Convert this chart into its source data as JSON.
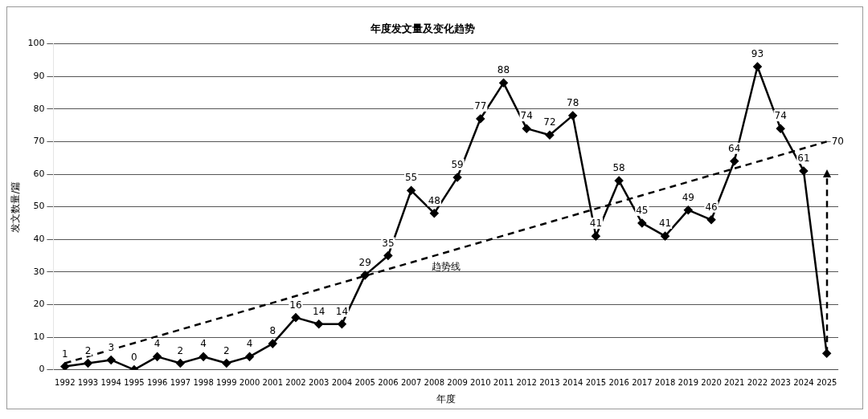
{
  "chart_data": {
    "type": "line",
    "title": "年度发文量及变化趋势",
    "xlabel": "年度",
    "ylabel": "发文数量/篇",
    "categories": [
      "1992",
      "1993",
      "1994",
      "1995",
      "1996",
      "1997",
      "1998",
      "1999",
      "2000",
      "2001",
      "2002",
      "2003",
      "2004",
      "2005",
      "2006",
      "2007",
      "2008",
      "2009",
      "2010",
      "2011",
      "2012",
      "2013",
      "2014",
      "2015",
      "2016",
      "2017",
      "2018",
      "2019",
      "2020",
      "2021",
      "2022",
      "2023",
      "2024",
      "2025"
    ],
    "series": [
      {
        "color": "#000000",
        "marker": "diamond",
        "line_style": "solid",
        "values": [
          1,
          2,
          3,
          0,
          4,
          2,
          4,
          2,
          4,
          8,
          16,
          14,
          14,
          29,
          35,
          55,
          48,
          59,
          77,
          88,
          74,
          72,
          78,
          41,
          58,
          45,
          41,
          49,
          46,
          64,
          93,
          74,
          61,
          5
        ],
        "value_labels": [
          "1",
          "2",
          "3",
          "0",
          "4",
          "2",
          "4",
          "2",
          "4",
          "8",
          "16",
          "14",
          "14",
          "29",
          "35",
          "55",
          "48",
          "59",
          "77",
          "88",
          "74",
          "72",
          "78",
          "41",
          "58",
          "45",
          "41",
          "49",
          "46",
          "64",
          "93",
          "74",
          "61",
          null
        ]
      },
      {
        "type": "line",
        "color": "#000000",
        "marker": "none",
        "line_style": "dashed",
        "values": [
          2,
          null,
          null,
          null,
          null,
          null,
          null,
          null,
          null,
          null,
          null,
          null,
          null,
          null,
          null,
          null,
          null,
          null,
          null,
          null,
          null,
          null,
          null,
          null,
          null,
          null,
          null,
          null,
          null,
          null,
          null,
          null,
          null,
          70
        ],
        "value_labels": [
          null,
          null,
          null,
          null,
          null,
          null,
          null,
          null,
          null,
          null,
          null,
          null,
          null,
          null,
          null,
          null,
          null,
          null,
          null,
          null,
          null,
          null,
          null,
          null,
          null,
          null,
          null,
          null,
          null,
          null,
          null,
          null,
          null,
          "70"
        ]
      }
    ],
    "annotations": [
      "趋势线"
    ],
    "ylim": [
      0,
      100
    ],
    "yticks": [
      0,
      10,
      20,
      30,
      40,
      50,
      60,
      70,
      80,
      90,
      100
    ],
    "grid": "y",
    "legend": false
  }
}
